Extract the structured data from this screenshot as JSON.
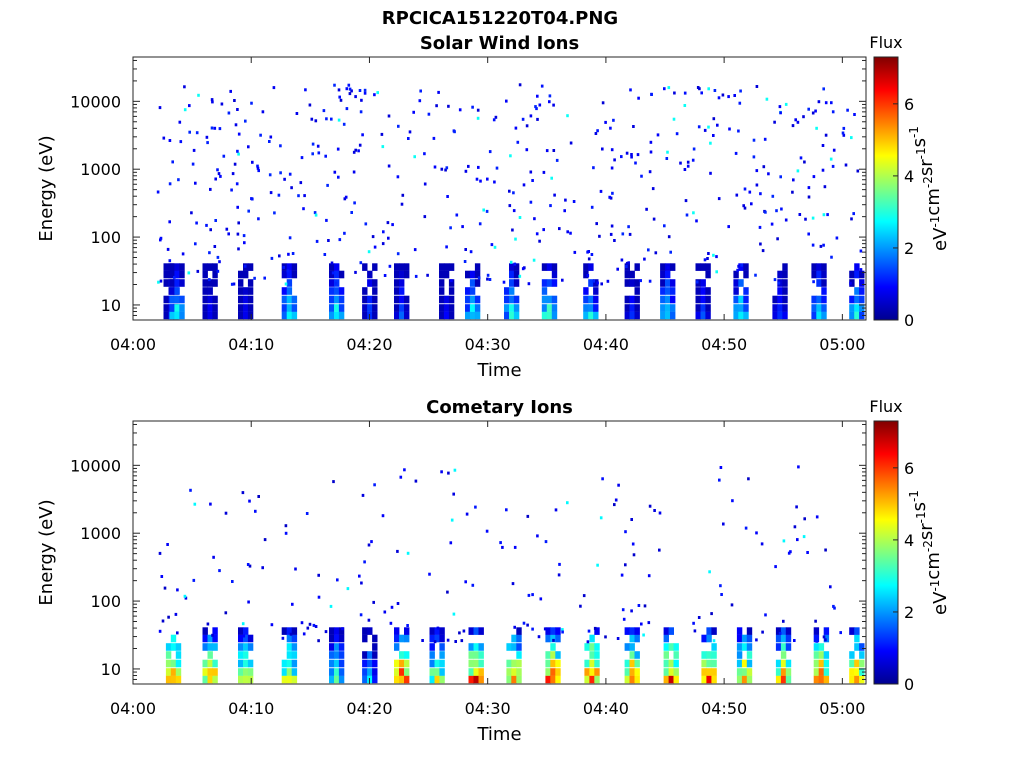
{
  "figure_title": "RPCICA151220T04.PNG",
  "chart_data": [
    {
      "type": "heatmap",
      "title": "Solar Wind Ions",
      "xlabel": "Time",
      "ylabel": "Energy (eV)",
      "yscale": "log",
      "xlim": [
        "04:00",
        "05:02"
      ],
      "ylim": [
        6,
        45000
      ],
      "xticks": [
        "04:00",
        "04:10",
        "04:20",
        "04:30",
        "04:40",
        "04:50",
        "05:00"
      ],
      "yticks": [
        "10",
        "100",
        "1000",
        "10000"
      ],
      "colorbar": {
        "label": "Flux",
        "units": "eV^-1 cm^-2 sr^-1 s^-1",
        "range": [
          0,
          7.3
        ],
        "ticks": [
          "0",
          "2",
          "4",
          "6"
        ],
        "colormap": "jet"
      },
      "bursts": [
        {
          "t": 3.0,
          "level": 1.2
        },
        {
          "t": 3.5,
          "level": 3.0
        },
        {
          "t": 6.3,
          "level": 1.0
        },
        {
          "t": 9.3,
          "level": 1.0
        },
        {
          "t": 13.0,
          "level": 3.2
        },
        {
          "t": 17.0,
          "level": 3.0
        },
        {
          "t": 19.8,
          "level": 1.5
        },
        {
          "t": 22.5,
          "level": 1.5
        },
        {
          "t": 26.3,
          "level": 1.0
        },
        {
          "t": 28.5,
          "level": 3.0
        },
        {
          "t": 31.8,
          "level": 3.0
        },
        {
          "t": 35.0,
          "level": 3.5
        },
        {
          "t": 38.5,
          "level": 3.0
        },
        {
          "t": 42.0,
          "level": 1.3
        },
        {
          "t": 45.0,
          "level": 3.0
        },
        {
          "t": 48.0,
          "level": 1.5
        },
        {
          "t": 51.2,
          "level": 3.0
        },
        {
          "t": 54.5,
          "level": 1.5
        },
        {
          "t": 57.8,
          "level": 3.0
        },
        {
          "t": 61.0,
          "level": 3.0
        }
      ],
      "scatter_level": 0.6
    },
    {
      "type": "heatmap",
      "title": "Cometary Ions",
      "xlabel": "Time",
      "ylabel": "Energy (eV)",
      "yscale": "log",
      "xlim": [
        "04:00",
        "05:02"
      ],
      "ylim": [
        6,
        45000
      ],
      "xticks": [
        "04:00",
        "04:10",
        "04:20",
        "04:30",
        "04:40",
        "04:50",
        "05:00"
      ],
      "yticks": [
        "10",
        "100",
        "1000",
        "10000"
      ],
      "colorbar": {
        "label": "Flux",
        "units": "eV^-1 cm^-2 sr^-1 s^-1",
        "range": [
          0,
          7.3
        ],
        "ticks": [
          "0",
          "2",
          "4",
          "6"
        ],
        "colormap": "jet"
      },
      "bursts": [
        {
          "t": 3.2,
          "level": 6.5
        },
        {
          "t": 6.3,
          "level": 6.0
        },
        {
          "t": 9.3,
          "level": 5.0
        },
        {
          "t": 13.0,
          "level": 5.0
        },
        {
          "t": 17.0,
          "level": 3.5
        },
        {
          "t": 19.8,
          "level": 2.5
        },
        {
          "t": 22.5,
          "level": 6.5
        },
        {
          "t": 25.5,
          "level": 4.5
        },
        {
          "t": 28.8,
          "level": 6.5
        },
        {
          "t": 32.0,
          "level": 6.0
        },
        {
          "t": 35.3,
          "level": 6.5
        },
        {
          "t": 38.6,
          "level": 6.5
        },
        {
          "t": 42.0,
          "level": 6.0
        },
        {
          "t": 45.3,
          "level": 6.5
        },
        {
          "t": 48.5,
          "level": 6.0
        },
        {
          "t": 51.5,
          "level": 5.5
        },
        {
          "t": 54.8,
          "level": 5.5
        },
        {
          "t": 58.0,
          "level": 6.0
        },
        {
          "t": 61.0,
          "level": 6.0
        }
      ],
      "scatter_level": 0.5
    }
  ]
}
